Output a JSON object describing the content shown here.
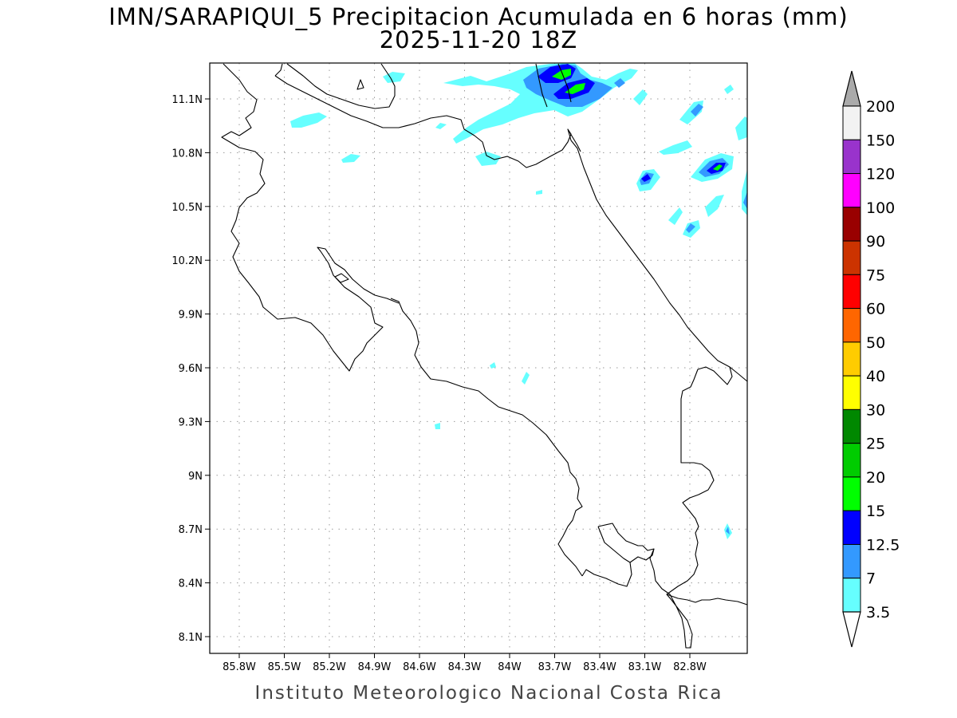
{
  "title": {
    "line1": "IMN/SARAPIQUI_5 Precipitacion Acumulada en 6 horas (mm)",
    "line2": "2025-11-20 18Z"
  },
  "credit": "Instituto Meteorologico Nacional Costa Rica",
  "map": {
    "lon_ticks": [
      "85.8W",
      "85.5W",
      "85.2W",
      "84.9W",
      "84.6W",
      "84.3W",
      "84W",
      "83.7W",
      "83.4W",
      "83.1W",
      "82.8W"
    ],
    "lat_ticks": [
      "11.1N",
      "10.8N",
      "10.5N",
      "10.2N",
      "9.9N",
      "9.6N",
      "9.3N",
      "9N",
      "8.7N",
      "8.4N",
      "8.1N"
    ]
  },
  "colorbar": {
    "levels": [
      "200",
      "150",
      "120",
      "100",
      "90",
      "75",
      "60",
      "50",
      "40",
      "30",
      "25",
      "20",
      "15",
      "12.5",
      "7",
      "3.5"
    ],
    "colors": [
      "#f2f2f2",
      "#9933cc",
      "#ff00ff",
      "#990000",
      "#cc3300",
      "#ff0000",
      "#ff6600",
      "#ffcc00",
      "#ffff00",
      "#008800",
      "#00cc00",
      "#00ff00",
      "#0000ff",
      "#3399ff",
      "#66ffff"
    ],
    "top_arrow_color": "#aaaaaa",
    "bottom_arrow_color": "#ffffff"
  }
}
